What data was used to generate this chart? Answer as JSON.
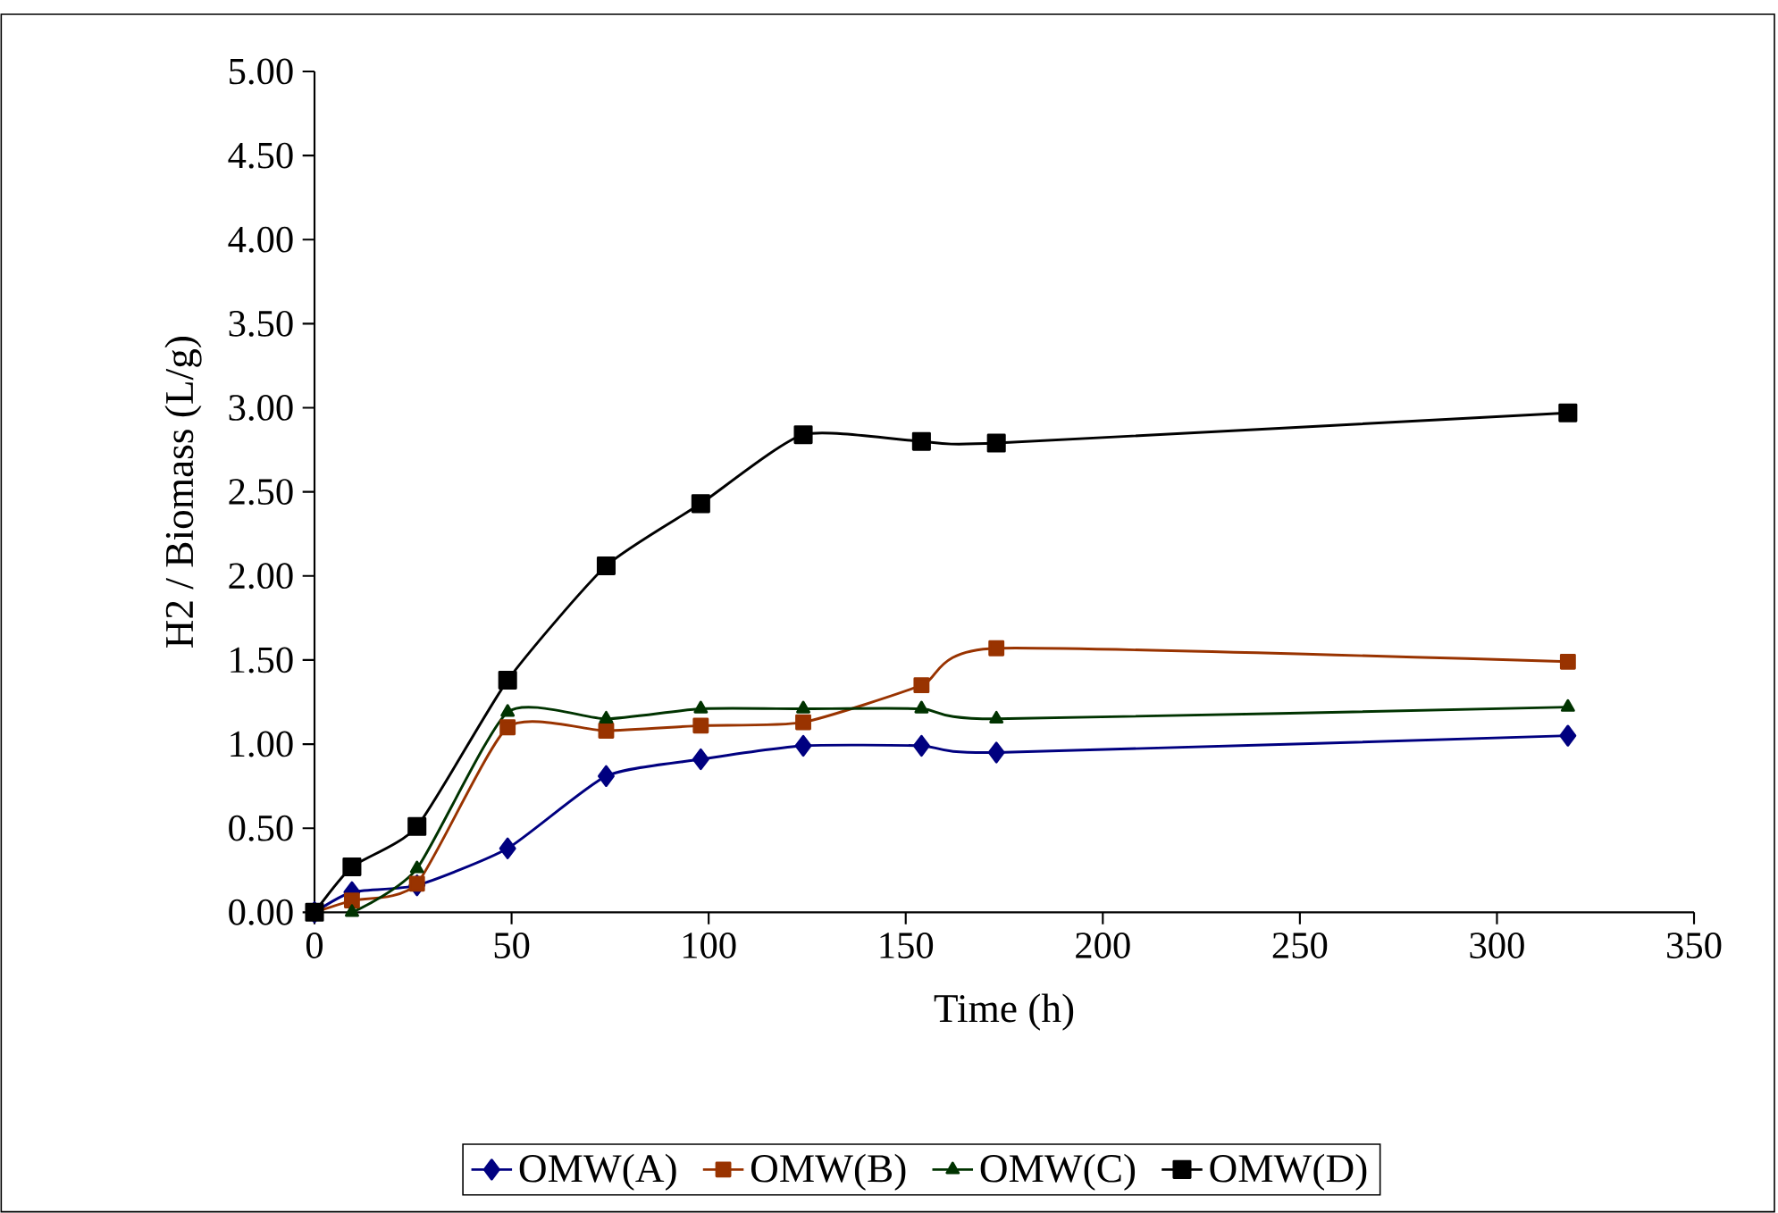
{
  "chart_data": {
    "type": "line",
    "xlabel": "Time (h)",
    "ylabel": "H2 / Biomass (L/g)",
    "x": [
      0,
      9.5,
      26,
      49,
      74,
      98,
      124,
      154,
      173,
      318
    ],
    "series": [
      {
        "name": "OMW(A)",
        "color": "#000080",
        "marker": "diamond",
        "values": [
          0,
          0.12,
          0.16,
          0.38,
          0.81,
          0.91,
          0.99,
          0.99,
          0.95,
          1.05
        ]
      },
      {
        "name": "OMW(B)",
        "color": "#993300",
        "marker": "square",
        "values": [
          0,
          0.07,
          0.17,
          1.1,
          1.08,
          1.11,
          1.13,
          1.35,
          1.57,
          1.49
        ]
      },
      {
        "name": "OMW(C)",
        "color": "#003300",
        "marker": "triangle",
        "values": [
          0,
          0.0,
          0.26,
          1.19,
          1.15,
          1.21,
          1.21,
          1.21,
          1.15,
          1.22
        ]
      },
      {
        "name": "OMW(D)",
        "color": "#000000",
        "marker": "square",
        "values": [
          0,
          0.27,
          0.51,
          1.38,
          2.06,
          2.43,
          2.84,
          2.8,
          2.79,
          2.97
        ]
      }
    ],
    "xlim": [
      0,
      350
    ],
    "xticks": [
      0,
      50,
      100,
      150,
      200,
      250,
      300,
      350
    ],
    "ylim": [
      0,
      5
    ],
    "yticks": [
      {
        "value": 0,
        "label": "0.00"
      },
      {
        "value": 0.5,
        "label": "0.50"
      },
      {
        "value": 1,
        "label": "1.00"
      },
      {
        "value": 1.5,
        "label": "1.50"
      },
      {
        "value": 2,
        "label": "2.00"
      },
      {
        "value": 2.5,
        "label": "2.50"
      },
      {
        "value": 3,
        "label": "3.00"
      },
      {
        "value": 3.5,
        "label": "3.50"
      },
      {
        "value": 4,
        "label": "4.00"
      },
      {
        "value": 4.5,
        "label": "4.50"
      },
      {
        "value": 5,
        "label": "5.00"
      }
    ],
    "grid": false,
    "legend": "bottom",
    "line_style": "solid"
  }
}
